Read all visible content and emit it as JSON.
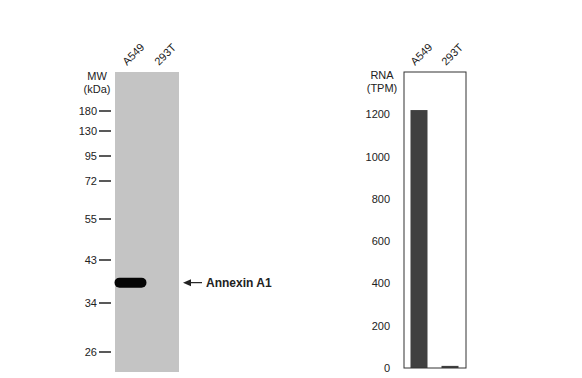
{
  "blot": {
    "ylabel": "MW\n(kDa)",
    "lanes": [
      "A549",
      "293T"
    ],
    "markers": [
      180,
      130,
      95,
      72,
      55,
      43,
      34,
      26
    ],
    "bands": [
      {
        "lane": "A549",
        "mw": 38,
        "label": "Annexin A1"
      }
    ]
  },
  "chart_data": {
    "type": "bar",
    "ylabel": "RNA\n(TPM)",
    "categories": [
      "A549",
      "293T"
    ],
    "values": [
      1220,
      10
    ],
    "color": "#404040",
    "ylim": [
      0,
      1400
    ],
    "yticks": [
      0,
      200,
      400,
      600,
      800,
      1000,
      1200
    ],
    "grid": false
  }
}
